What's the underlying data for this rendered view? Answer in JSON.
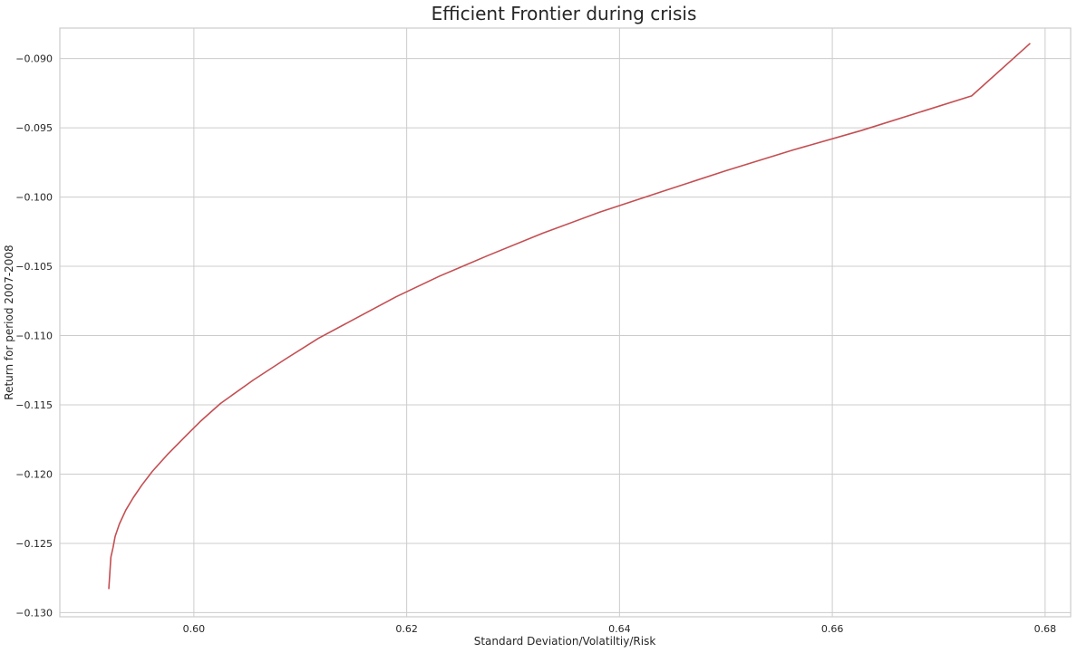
{
  "chart_data": {
    "type": "line",
    "title": "Efficient Frontier during crisis",
    "xlabel": "Standard Deviation/Volatiltiy/Risk",
    "ylabel": "Return for period 2007-2008",
    "xlim": [
      0.5874,
      0.6824
    ],
    "ylim": [
      -0.1303,
      -0.0878
    ],
    "xticks": [
      0.6,
      0.62,
      0.64,
      0.66,
      0.68
    ],
    "xtick_labels": [
      "0.60",
      "0.62",
      "0.64",
      "0.66",
      "0.68"
    ],
    "yticks": [
      -0.13,
      -0.125,
      -0.12,
      -0.115,
      -0.11,
      -0.105,
      -0.1,
      -0.095,
      -0.09
    ],
    "ytick_labels": [
      "−0.130",
      "−0.125",
      "−0.120",
      "−0.115",
      "−0.110",
      "−0.105",
      "−0.100",
      "−0.095",
      "−0.090"
    ],
    "grid": true,
    "line_color": "#c44e52",
    "series": [
      {
        "x": [
          0.592,
          0.5921,
          0.5922,
          0.5924,
          0.5926,
          0.593,
          0.5936,
          0.5943,
          0.5951,
          0.5961,
          0.5975,
          0.5993,
          0.6006,
          0.6025,
          0.6056,
          0.6086,
          0.6117,
          0.6151,
          0.619,
          0.6231,
          0.6277,
          0.6328,
          0.6381,
          0.644,
          0.65,
          0.6563,
          0.6627,
          0.6685,
          0.6731,
          0.6786
        ],
        "y": [
          -0.1283,
          -0.1271,
          -0.126,
          -0.1253,
          -0.1245,
          -0.1236,
          -0.1226,
          -0.1217,
          -0.1208,
          -0.1198,
          -0.1186,
          -0.1172,
          -0.1162,
          -0.1149,
          -0.1132,
          -0.1117,
          -0.1102,
          -0.1088,
          -0.1072,
          -0.1057,
          -0.1042,
          -0.1026,
          -0.1011,
          -0.0996,
          -0.0981,
          -0.0966,
          -0.0952,
          -0.0938,
          -0.0927,
          -0.0889
        ]
      }
    ]
  }
}
